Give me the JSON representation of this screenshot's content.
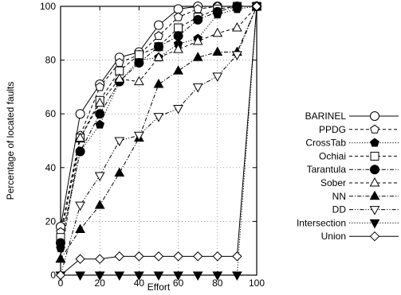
{
  "chart_data": {
    "type": "line",
    "title": "",
    "xlabel": "Effort",
    "ylabel": "Percentage of located faults",
    "xlim": [
      0,
      100
    ],
    "ylim": [
      0,
      100
    ],
    "x_ticks": [
      "0",
      "20",
      "40",
      "60",
      "80",
      "100"
    ],
    "y_ticks": [
      "0",
      "20",
      "40",
      "60",
      "80",
      "100"
    ],
    "grid": true,
    "legend_position": "right",
    "x": [
      0,
      10,
      20,
      30,
      40,
      50,
      60,
      70,
      80,
      90,
      100
    ],
    "series": [
      {
        "name": "BARINEL",
        "marker": "circle-open",
        "dash": "solid",
        "values": [
          18,
          60,
          71,
          81,
          83,
          93,
          99,
          100,
          100,
          100,
          100
        ]
      },
      {
        "name": "PPDG",
        "marker": "pentagon-open",
        "dash": "dashed",
        "values": [
          16,
          52,
          70,
          79,
          82,
          89,
          96,
          99,
          100,
          100,
          100
        ]
      },
      {
        "name": "CrossTab",
        "marker": "pentagon-filled",
        "dash": "dotted",
        "values": [
          10,
          46,
          56,
          72,
          80,
          81,
          86,
          88,
          97,
          99,
          100
        ]
      },
      {
        "name": "Ochiai",
        "marker": "square-open",
        "dash": "dashed",
        "values": [
          14,
          51,
          65,
          76,
          82,
          85,
          92,
          96,
          99,
          100,
          100
        ]
      },
      {
        "name": "Tarantula",
        "marker": "circle-filled",
        "dash": "dashdot",
        "values": [
          12,
          46,
          60,
          72,
          79,
          85,
          89,
          95,
          98,
          100,
          100
        ]
      },
      {
        "name": "Sober",
        "marker": "triangle-up-open",
        "dash": "dashed",
        "values": [
          6,
          51,
          64,
          73,
          72,
          81,
          84,
          87,
          90,
          92,
          100
        ]
      },
      {
        "name": "NN",
        "marker": "triangle-up-filled",
        "dash": "dashdot",
        "values": [
          6,
          17,
          26,
          38,
          51,
          71,
          76,
          81,
          83,
          83,
          100
        ]
      },
      {
        "name": "DD",
        "marker": "triangle-down-open",
        "dash": "dashdotdot",
        "values": [
          0,
          26,
          37,
          50,
          52,
          59,
          62,
          70,
          74,
          82,
          100
        ]
      },
      {
        "name": "Intersection",
        "marker": "triangle-down-filled",
        "dash": "dotted",
        "values": [
          0,
          0,
          0,
          0,
          0,
          0,
          0,
          0,
          0,
          0,
          100
        ]
      },
      {
        "name": "Union",
        "marker": "diamond-open",
        "dash": "solid",
        "values": [
          0,
          6,
          6,
          7,
          7,
          7,
          7,
          7,
          7,
          7,
          100
        ]
      }
    ]
  }
}
